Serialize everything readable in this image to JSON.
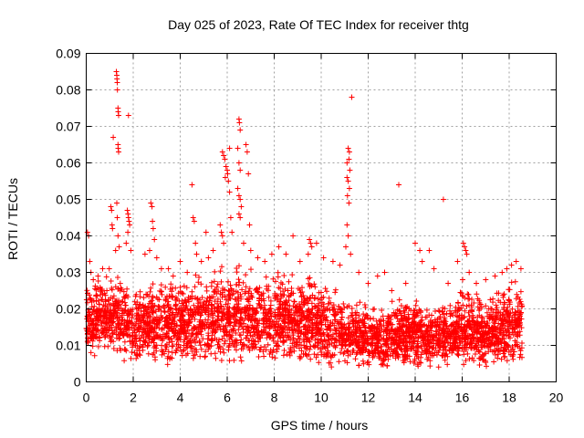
{
  "chart_data": {
    "type": "scatter",
    "title": "Day 025 of 2023, Rate Of TEC Index for receiver thtg",
    "xlabel": "GPS time / hours",
    "ylabel": "ROTI / TECUs",
    "xlim": [
      0,
      20
    ],
    "ylim": [
      0,
      0.09
    ],
    "x_ticks": [
      "0",
      "2",
      "4",
      "6",
      "8",
      "10",
      "12",
      "14",
      "16",
      "18",
      "20"
    ],
    "y_ticks": [
      "0",
      "0.01",
      "0.02",
      "0.03",
      "0.04",
      "0.05",
      "0.06",
      "0.07",
      "0.08",
      "0.09"
    ],
    "grid": true,
    "marker": "+",
    "marker_color": "#ff0000",
    "series": [
      {
        "points": [
          [
            0.05,
            0.041
          ],
          [
            0.1,
            0.04
          ],
          [
            0.15,
            0.033
          ],
          [
            0.2,
            0.03
          ],
          [
            0.3,
            0.028
          ],
          [
            0.5,
            0.029
          ],
          [
            0.7,
            0.031
          ],
          [
            1.05,
            0.048
          ],
          [
            1.08,
            0.047
          ],
          [
            1.1,
            0.043
          ],
          [
            1.12,
            0.042
          ],
          [
            1.15,
            0.067
          ],
          [
            1.28,
            0.085
          ],
          [
            1.3,
            0.084
          ],
          [
            1.31,
            0.083
          ],
          [
            1.32,
            0.082
          ],
          [
            1.33,
            0.08
          ],
          [
            1.35,
            0.075
          ],
          [
            1.36,
            0.074
          ],
          [
            1.38,
            0.073
          ],
          [
            1.35,
            0.065
          ],
          [
            1.36,
            0.064
          ],
          [
            1.38,
            0.063
          ],
          [
            1.3,
            0.049
          ],
          [
            1.32,
            0.045
          ],
          [
            1.35,
            0.04
          ],
          [
            1.4,
            0.037
          ],
          [
            1.25,
            0.036
          ],
          [
            1.8,
            0.073
          ],
          [
            1.75,
            0.047
          ],
          [
            1.78,
            0.046
          ],
          [
            1.8,
            0.045
          ],
          [
            1.82,
            0.044
          ],
          [
            1.85,
            0.043
          ],
          [
            1.77,
            0.041
          ],
          [
            1.7,
            0.038
          ],
          [
            1.9,
            0.036
          ],
          [
            2.5,
            0.035
          ],
          [
            2.7,
            0.036
          ],
          [
            2.75,
            0.049
          ],
          [
            2.8,
            0.048
          ],
          [
            2.82,
            0.044
          ],
          [
            2.85,
            0.042
          ],
          [
            2.9,
            0.039
          ],
          [
            3.0,
            0.034
          ],
          [
            3.2,
            0.031
          ],
          [
            3.5,
            0.031
          ],
          [
            3.7,
            0.029
          ],
          [
            4.0,
            0.033
          ],
          [
            4.3,
            0.03
          ],
          [
            4.5,
            0.054
          ],
          [
            4.55,
            0.045
          ],
          [
            4.6,
            0.044
          ],
          [
            4.65,
            0.038
          ],
          [
            4.7,
            0.035
          ],
          [
            4.9,
            0.033
          ],
          [
            5.1,
            0.041
          ],
          [
            5.2,
            0.034
          ],
          [
            5.4,
            0.036
          ],
          [
            5.7,
            0.043
          ],
          [
            5.75,
            0.041
          ],
          [
            5.8,
            0.04
          ],
          [
            5.85,
            0.038
          ],
          [
            5.8,
            0.063
          ],
          [
            5.85,
            0.062
          ],
          [
            5.9,
            0.061
          ],
          [
            5.95,
            0.059
          ],
          [
            6.0,
            0.058
          ],
          [
            6.02,
            0.057
          ],
          [
            5.92,
            0.056
          ],
          [
            6.05,
            0.055
          ],
          [
            6.1,
            0.064
          ],
          [
            6.1,
            0.052
          ],
          [
            6.15,
            0.045
          ],
          [
            6.2,
            0.041
          ],
          [
            6.5,
            0.072
          ],
          [
            6.52,
            0.071
          ],
          [
            6.55,
            0.069
          ],
          [
            6.45,
            0.064
          ],
          [
            6.5,
            0.06
          ],
          [
            6.55,
            0.058
          ],
          [
            6.45,
            0.053
          ],
          [
            6.5,
            0.051
          ],
          [
            6.55,
            0.05
          ],
          [
            6.6,
            0.048
          ],
          [
            6.5,
            0.046
          ],
          [
            6.55,
            0.045
          ],
          [
            6.8,
            0.065
          ],
          [
            6.85,
            0.063
          ],
          [
            6.9,
            0.057
          ],
          [
            6.95,
            0.043
          ],
          [
            6.7,
            0.038
          ],
          [
            7.0,
            0.036
          ],
          [
            7.3,
            0.034
          ],
          [
            7.6,
            0.033
          ],
          [
            7.9,
            0.035
          ],
          [
            8.2,
            0.037
          ],
          [
            8.5,
            0.035
          ],
          [
            8.8,
            0.04
          ],
          [
            9.1,
            0.033
          ],
          [
            9.5,
            0.039
          ],
          [
            9.55,
            0.038
          ],
          [
            9.6,
            0.037
          ],
          [
            9.45,
            0.035
          ],
          [
            9.8,
            0.038
          ],
          [
            10.1,
            0.034
          ],
          [
            10.5,
            0.033
          ],
          [
            10.8,
            0.032
          ],
          [
            11.15,
            0.064
          ],
          [
            11.2,
            0.063
          ],
          [
            11.18,
            0.061
          ],
          [
            11.1,
            0.06
          ],
          [
            11.22,
            0.058
          ],
          [
            11.1,
            0.056
          ],
          [
            11.15,
            0.055
          ],
          [
            11.2,
            0.053
          ],
          [
            11.12,
            0.051
          ],
          [
            11.18,
            0.049
          ],
          [
            11.1,
            0.043
          ],
          [
            11.15,
            0.04
          ],
          [
            11.05,
            0.037
          ],
          [
            11.3,
            0.078
          ],
          [
            11.25,
            0.035
          ],
          [
            11.6,
            0.03
          ],
          [
            12.0,
            0.027
          ],
          [
            12.4,
            0.029
          ],
          [
            12.7,
            0.03
          ],
          [
            13.0,
            0.025
          ],
          [
            13.3,
            0.054
          ],
          [
            13.6,
            0.027
          ],
          [
            14.0,
            0.038
          ],
          [
            14.2,
            0.036
          ],
          [
            14.3,
            0.033
          ],
          [
            14.6,
            0.036
          ],
          [
            14.8,
            0.031
          ],
          [
            15.2,
            0.05
          ],
          [
            15.4,
            0.027
          ],
          [
            15.8,
            0.033
          ],
          [
            16.05,
            0.038
          ],
          [
            16.1,
            0.037
          ],
          [
            16.15,
            0.036
          ],
          [
            16.2,
            0.035
          ],
          [
            16.3,
            0.03
          ],
          [
            16.6,
            0.027
          ],
          [
            17.0,
            0.028
          ],
          [
            17.4,
            0.029
          ],
          [
            17.7,
            0.03
          ],
          [
            17.9,
            0.031
          ],
          [
            18.1,
            0.032
          ],
          [
            18.3,
            0.033
          ],
          [
            18.5,
            0.031
          ]
        ],
        "dense_band": [
          [
            0.0,
            0.006,
            0.024
          ],
          [
            0.5,
            0.006,
            0.027
          ],
          [
            1.0,
            0.005,
            0.03
          ],
          [
            1.5,
            0.005,
            0.03
          ],
          [
            2.0,
            0.003,
            0.026
          ],
          [
            2.5,
            0.004,
            0.027
          ],
          [
            3.0,
            0.004,
            0.026
          ],
          [
            3.5,
            0.004,
            0.027
          ],
          [
            4.0,
            0.004,
            0.027
          ],
          [
            4.5,
            0.004,
            0.028
          ],
          [
            5.0,
            0.004,
            0.029
          ],
          [
            5.5,
            0.004,
            0.029
          ],
          [
            6.0,
            0.004,
            0.03
          ],
          [
            6.5,
            0.005,
            0.031
          ],
          [
            7.0,
            0.005,
            0.03
          ],
          [
            7.5,
            0.004,
            0.029
          ],
          [
            8.0,
            0.004,
            0.029
          ],
          [
            8.5,
            0.005,
            0.03
          ],
          [
            9.0,
            0.004,
            0.027
          ],
          [
            9.5,
            0.004,
            0.029
          ],
          [
            10.0,
            0.003,
            0.026
          ],
          [
            10.5,
            0.003,
            0.025
          ],
          [
            11.0,
            0.003,
            0.024
          ],
          [
            11.5,
            0.003,
            0.022
          ],
          [
            12.0,
            0.003,
            0.02
          ],
          [
            12.5,
            0.003,
            0.02
          ],
          [
            13.0,
            0.002,
            0.021
          ],
          [
            13.5,
            0.002,
            0.022
          ],
          [
            14.0,
            0.002,
            0.023
          ],
          [
            14.5,
            0.003,
            0.022
          ],
          [
            15.0,
            0.003,
            0.021
          ],
          [
            15.5,
            0.003,
            0.022
          ],
          [
            16.0,
            0.003,
            0.026
          ],
          [
            16.5,
            0.003,
            0.024
          ],
          [
            17.0,
            0.003,
            0.023
          ],
          [
            17.5,
            0.003,
            0.024
          ],
          [
            18.0,
            0.003,
            0.027
          ],
          [
            18.5,
            0.004,
            0.027
          ]
        ],
        "x_range": [
          0,
          18.55
        ]
      }
    ]
  }
}
